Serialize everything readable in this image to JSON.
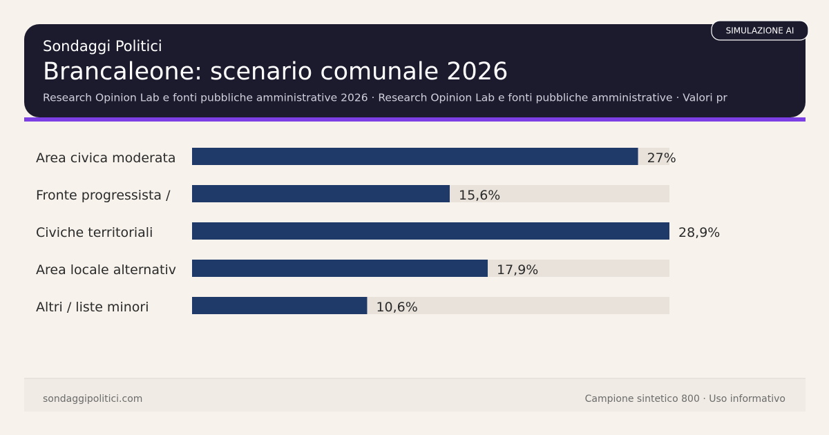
{
  "chart_data": {
    "type": "bar",
    "orientation": "horizontal",
    "kicker": "Sondaggi Politici",
    "title": "Brancaleone: scenario comunale 2026",
    "subtitle": "Research Opinion Lab e fonti pubbliche amministrative 2026 · Research Opinion Lab e fonti pubbliche amministrative · Valori pr",
    "categories": [
      "Area civica moderata",
      "Fronte progressista /",
      "Civiche territoriali",
      "Area locale alternativ",
      "Altri / liste minori"
    ],
    "values": [
      27,
      15.6,
      28.9,
      17.9,
      10.6
    ],
    "value_labels": [
      "27%",
      "15,6%",
      "28,9%",
      "17,9%",
      "10,6%"
    ],
    "xlim": [
      0,
      28.9
    ],
    "color": "#1f3a68",
    "track_color": "#e8e2da"
  },
  "badge": "SIMULAZIONE AI",
  "footer": {
    "left": "sondaggipolitici.com",
    "right": "Campione sintetico 800 · Uso informativo"
  }
}
